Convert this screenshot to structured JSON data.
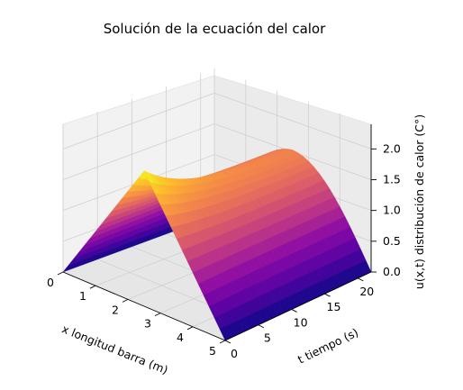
{
  "chart_data": {
    "type": "surface3d",
    "title": "Solución de la ecuación del calor",
    "xlabel": "x longitud barra (m)",
    "ylabel": "t tiempo (s)",
    "zlabel": "u(x,t) distribución de calor (C°)",
    "xlim": [
      0,
      5
    ],
    "ylim": [
      0,
      22
    ],
    "zlim": [
      0,
      2.4
    ],
    "xticks": [
      "0",
      "1",
      "2",
      "3",
      "4",
      "5"
    ],
    "yticks": [
      "0",
      "5",
      "10",
      "15",
      "20"
    ],
    "zticks": [
      "0.0",
      "0.5",
      "1.0",
      "1.5",
      "2.0"
    ],
    "colormap": "plasma",
    "grid": true,
    "surface": {
      "x": [
        0,
        0.625,
        1.25,
        1.875,
        2.5,
        3.125,
        3.75,
        4.375,
        5
      ],
      "t": [
        0,
        2.75,
        5.5,
        8.25,
        11,
        13.75,
        16.5,
        19.25,
        22
      ],
      "u_at_t0": [
        0,
        0.55,
        1.1,
        1.65,
        2.2,
        1.65,
        1.1,
        0.55,
        0
      ],
      "u_peak_at_t_end": 1.5
    }
  }
}
